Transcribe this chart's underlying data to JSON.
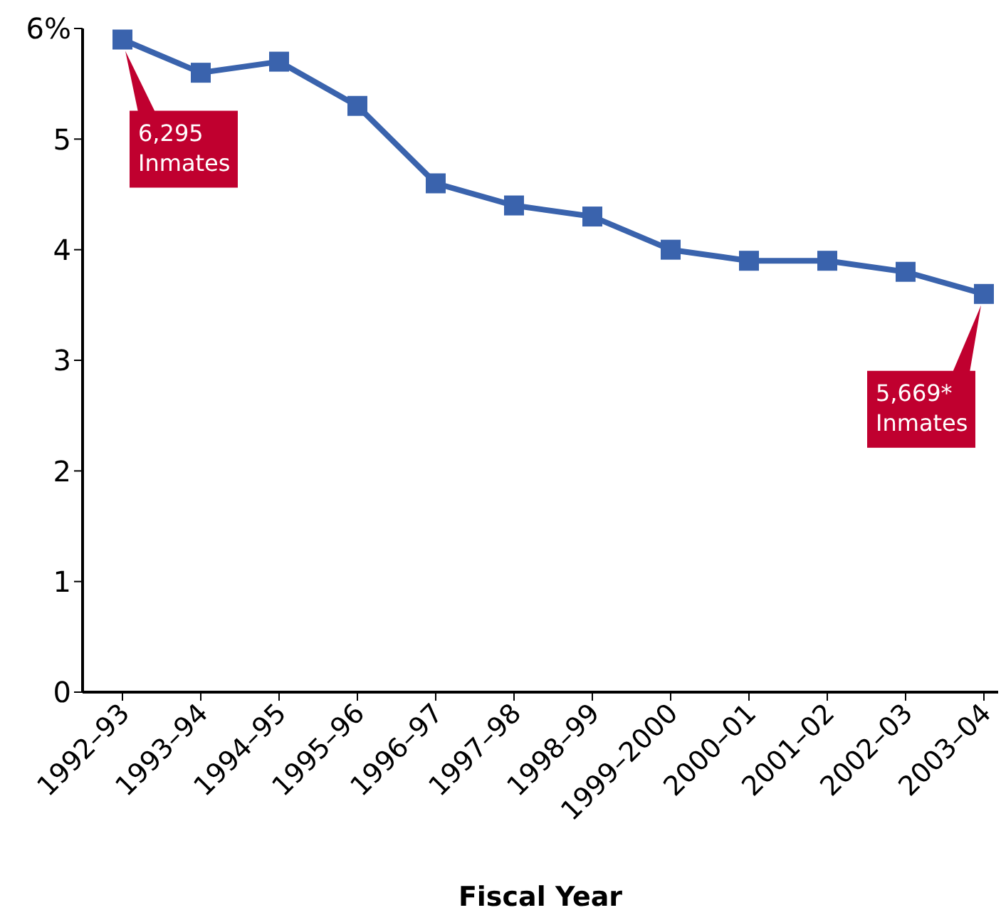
{
  "chart_data": {
    "type": "line",
    "xlabel": "Fiscal Year",
    "categories": [
      "1992–93",
      "1993–94",
      "1994–95",
      "1995–96",
      "1996–97",
      "1997–98",
      "1998–99",
      "1999–2000",
      "2000–01",
      "2001–02",
      "2002–03",
      "2003–04"
    ],
    "series": [
      {
        "color": "#3a63ad",
        "values": [
          5.9,
          5.6,
          5.7,
          5.3,
          4.6,
          4.4,
          4.3,
          4.0,
          3.9,
          3.9,
          3.8,
          3.6
        ]
      }
    ],
    "ylim": [
      0,
      6
    ],
    "yticks": [
      0,
      1,
      2,
      3,
      4,
      5,
      {
        "value": 6,
        "label": "6%"
      }
    ],
    "grid": false,
    "legend": false,
    "marker": "square",
    "line_style": "solid",
    "annotations": [
      {
        "text": "6,295 Inmates",
        "x": "1992–93",
        "y": 5.9
      },
      {
        "text": "5,669* Inmates",
        "x": "2003–04",
        "y": 3.6
      }
    ]
  }
}
